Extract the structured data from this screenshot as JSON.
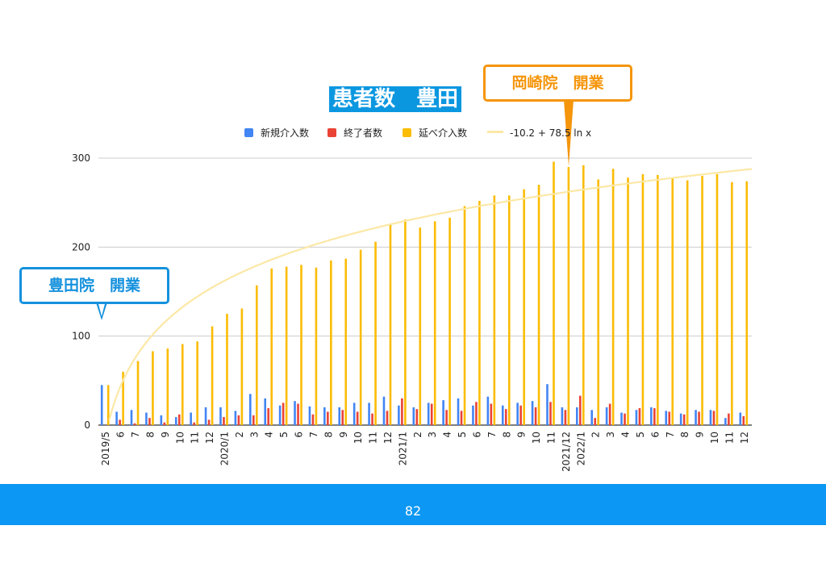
{
  "title": "患者数　豊田",
  "page_number": "82",
  "callouts": {
    "okazaki": "岡崎院　開業",
    "toyota": "豊田院　開業"
  },
  "colors": {
    "new": "#4285f4",
    "end": "#ea4335",
    "total": "#fbbc04",
    "trend": "#fce8a6",
    "title_bg": "#0b97e0",
    "footer": "#0b97f3",
    "callout_orange": "#f5950b",
    "callout_blue": "#1591dd"
  },
  "legend": {
    "new": "新規介入数",
    "end": "終了者数",
    "total": "延べ介入数",
    "trend": "-10.2 + 78.5 ln x"
  },
  "chart_data": {
    "type": "bar",
    "title": "患者数　豊田",
    "categories": [
      "2019/5",
      "6",
      "7",
      "8",
      "9",
      "10",
      "11",
      "12",
      "2020/1",
      "2",
      "3",
      "4",
      "5",
      "6",
      "7",
      "8",
      "9",
      "10",
      "11",
      "12",
      "2021/1",
      "2",
      "3",
      "4",
      "5",
      "6",
      "7",
      "8",
      "9",
      "10",
      "11",
      "2021/12",
      "2022/1",
      "2",
      "3",
      "4",
      "5",
      "6",
      "7",
      "8",
      "9",
      "10",
      "11",
      "12"
    ],
    "series": [
      {
        "name": "新規介入数",
        "values": [
          45,
          15,
          17,
          14,
          11,
          9,
          14,
          20,
          20,
          16,
          35,
          30,
          22,
          27,
          21,
          20,
          20,
          25,
          25,
          32,
          22,
          20,
          25,
          28,
          30,
          22,
          32,
          22,
          25,
          27,
          46,
          20,
          20,
          17,
          20,
          14,
          17,
          20,
          16,
          13,
          17,
          17,
          8,
          14
        ]
      },
      {
        "name": "終了者数",
        "values": [
          0,
          6,
          2,
          8,
          3,
          12,
          3,
          6,
          9,
          11,
          11,
          19,
          25,
          24,
          12,
          15,
          17,
          15,
          13,
          16,
          30,
          18,
          24,
          17,
          16,
          26,
          24,
          18,
          22,
          20,
          26,
          17,
          33,
          8,
          24,
          13,
          19,
          19,
          15,
          12,
          15,
          16,
          13,
          10
        ]
      },
      {
        "name": "延べ介入数",
        "values": [
          45,
          60,
          72,
          83,
          86,
          91,
          94,
          111,
          125,
          131,
          157,
          176,
          178,
          180,
          177,
          185,
          187,
          197,
          206,
          226,
          231,
          222,
          229,
          233,
          246,
          252,
          258,
          258,
          265,
          270,
          296,
          290,
          292,
          276,
          288,
          278,
          282,
          281,
          277,
          275,
          280,
          282,
          273,
          274
        ]
      }
    ],
    "trendline": {
      "name": "-10.2 + 78.5 ln x",
      "a": -10.2,
      "b": 78.5
    },
    "ylim": [
      0,
      300
    ],
    "yticks": [
      0,
      100,
      200,
      300
    ],
    "grid": true,
    "legend_position": "top"
  }
}
